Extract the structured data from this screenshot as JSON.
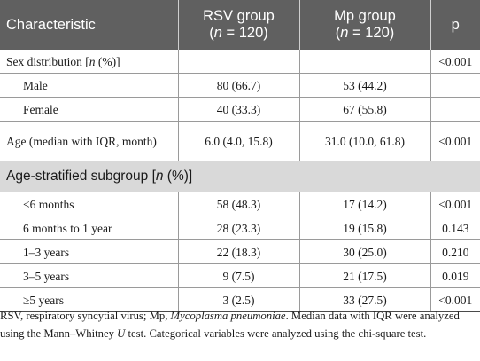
{
  "table": {
    "headers": {
      "characteristic": "Characteristic",
      "rsv_group": "RSV group",
      "rsv_n_open": "(",
      "rsv_n_var": "n",
      "rsv_n_rest": " = 120)",
      "mp_group": "Mp group",
      "mp_n_open": "(",
      "mp_n_var": "n",
      "mp_n_rest": " = 120)",
      "p": "p"
    },
    "sex_distribution": {
      "label_prefix": "Sex distribution [",
      "label_var": "n",
      "label_suffix": " (%)]",
      "rsv": "",
      "mp": "",
      "p": "<0.001"
    },
    "rows_sex": [
      {
        "label": "Male",
        "rsv": "80 (66.7)",
        "mp": "53 (44.2)",
        "p": ""
      },
      {
        "label": "Female",
        "rsv": "40 (33.3)",
        "mp": "67 (55.8)",
        "p": ""
      }
    ],
    "age": {
      "label": "Age (median with IQR, month)",
      "rsv": "6.0 (4.0, 15.8)",
      "mp": "31.0 (10.0, 61.8)",
      "p": "<0.001"
    },
    "subgroup": {
      "label_prefix": "Age-stratified subgroup [",
      "label_var": "n",
      "label_suffix": " (%)]"
    },
    "rows_age": [
      {
        "label": "<6 months",
        "rsv": "58 (48.3)",
        "mp": "17 (14.2)",
        "p": "<0.001"
      },
      {
        "label": "6 months to 1 year",
        "rsv": "28 (23.3)",
        "mp": "19 (15.8)",
        "p": "0.143"
      },
      {
        "label": "1–3 years",
        "rsv": "22 (18.3)",
        "mp": "30 (25.0)",
        "p": "0.210"
      },
      {
        "label": "3–5 years",
        "rsv": "9 (7.5)",
        "mp": "21 (17.5)",
        "p": "0.019"
      },
      {
        "label": "≥5 years",
        "rsv": "3 (2.5)",
        "mp": "33 (27.5)",
        "p": "<0.001"
      }
    ]
  },
  "footnote": {
    "part1": "RSV, respiratory syncytial virus; Mp, ",
    "part2_italic": "Mycoplasma pneumoniae",
    "part3": ". Median data with IQR were analyzed using the Mann–Whitney ",
    "part4_italic": "U",
    "part5": " test. Categorical variables were analyzed using the chi-square test."
  }
}
